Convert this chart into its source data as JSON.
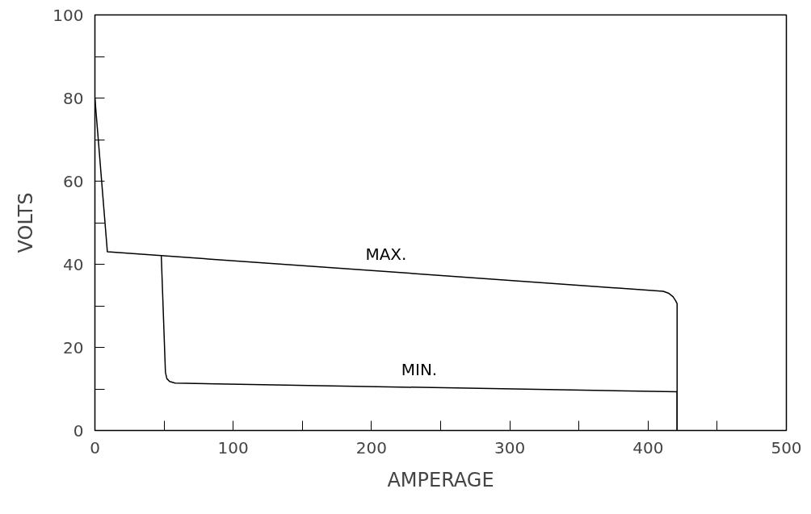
{
  "chart_data": {
    "type": "line",
    "xlabel": "AMPERAGE",
    "ylabel": "VOLTS",
    "xlim": [
      0,
      500
    ],
    "ylim": [
      0,
      100
    ],
    "xticks": [
      0,
      {
        "value": 50,
        "label": null
      },
      100,
      {
        "value": 150,
        "label": null
      },
      200,
      {
        "value": 250,
        "label": null
      },
      300,
      {
        "value": 350,
        "label": null
      },
      400,
      {
        "value": 450,
        "label": null
      },
      500
    ],
    "yticks": [
      0,
      {
        "value": 10,
        "label": null
      },
      20,
      {
        "value": 30,
        "label": null
      },
      40,
      {
        "value": 50,
        "label": null
      },
      60,
      {
        "value": 70,
        "label": null
      },
      80,
      {
        "value": 90,
        "label": null
      },
      100
    ],
    "grid": false,
    "marker": "none",
    "line_style": "solid",
    "series": [
      {
        "name": "MAX.",
        "color": "#000000",
        "x": [
          0,
          9,
          411,
          415,
          418,
          420,
          421,
          421
        ],
        "values": [
          80,
          43,
          33.5,
          33,
          32.2,
          31.2,
          30.5,
          0
        ]
      },
      {
        "name": "MIN.",
        "color": "#000000",
        "x": [
          48,
          51,
          52,
          54,
          58,
          421,
          421
        ],
        "values": [
          42,
          14,
          12.5,
          11.8,
          11.4,
          9.3,
          0
        ]
      }
    ]
  }
}
